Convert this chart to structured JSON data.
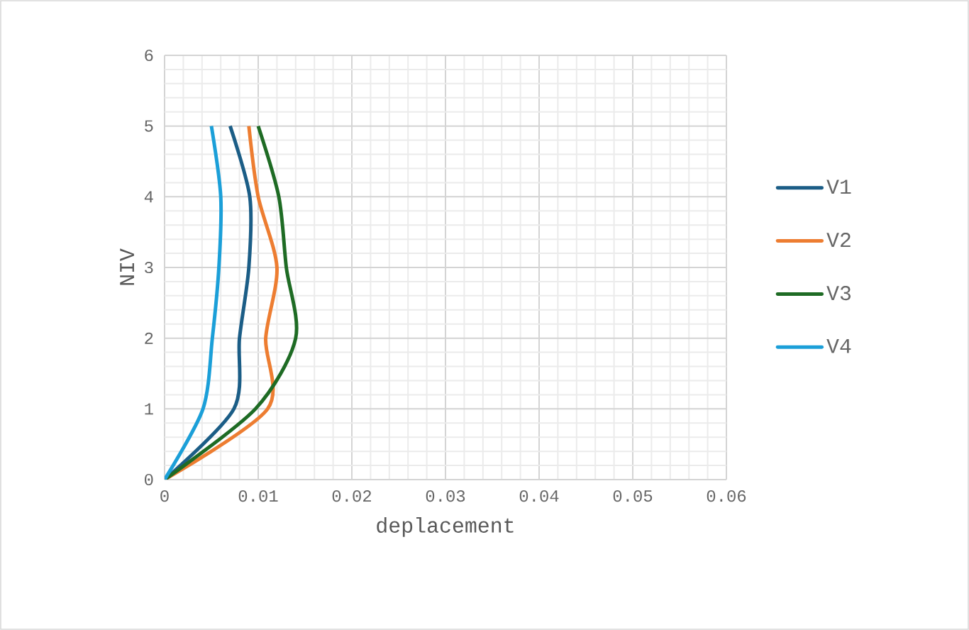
{
  "chart_data": {
    "type": "line",
    "xlabel": "deplacement",
    "ylabel": "NIV",
    "xlim": [
      0,
      0.06
    ],
    "ylim": [
      0,
      6
    ],
    "xticks": [
      0,
      0.01,
      0.02,
      0.03,
      0.04,
      0.05,
      0.06
    ],
    "yticks": [
      0,
      1,
      2,
      3,
      4,
      5,
      6
    ],
    "grid": true,
    "legend": "right",
    "marker": "none",
    "line_style": "solid",
    "series": [
      {
        "name": "V1",
        "color": "#1b5d86",
        "x": [
          0,
          0.0074,
          0.008,
          0.009,
          0.0091,
          0.007
        ],
        "values": [
          0,
          1,
          2,
          3,
          4,
          5
        ]
      },
      {
        "name": "V2",
        "color": "#ed7d31",
        "x": [
          0,
          0.011,
          0.0108,
          0.012,
          0.01,
          0.009
        ],
        "values": [
          0,
          1,
          2,
          3,
          4,
          5
        ]
      },
      {
        "name": "V3",
        "color": "#1e6b24",
        "x": [
          0,
          0.0097,
          0.014,
          0.013,
          0.0122,
          0.01
        ],
        "values": [
          0,
          1,
          2,
          3,
          4,
          5
        ]
      },
      {
        "name": "V4",
        "color": "#1b9fd8",
        "x": [
          0,
          0.0041,
          0.0051,
          0.0058,
          0.006,
          0.005
        ],
        "values": [
          0,
          1,
          2,
          3,
          4,
          5
        ]
      }
    ]
  }
}
